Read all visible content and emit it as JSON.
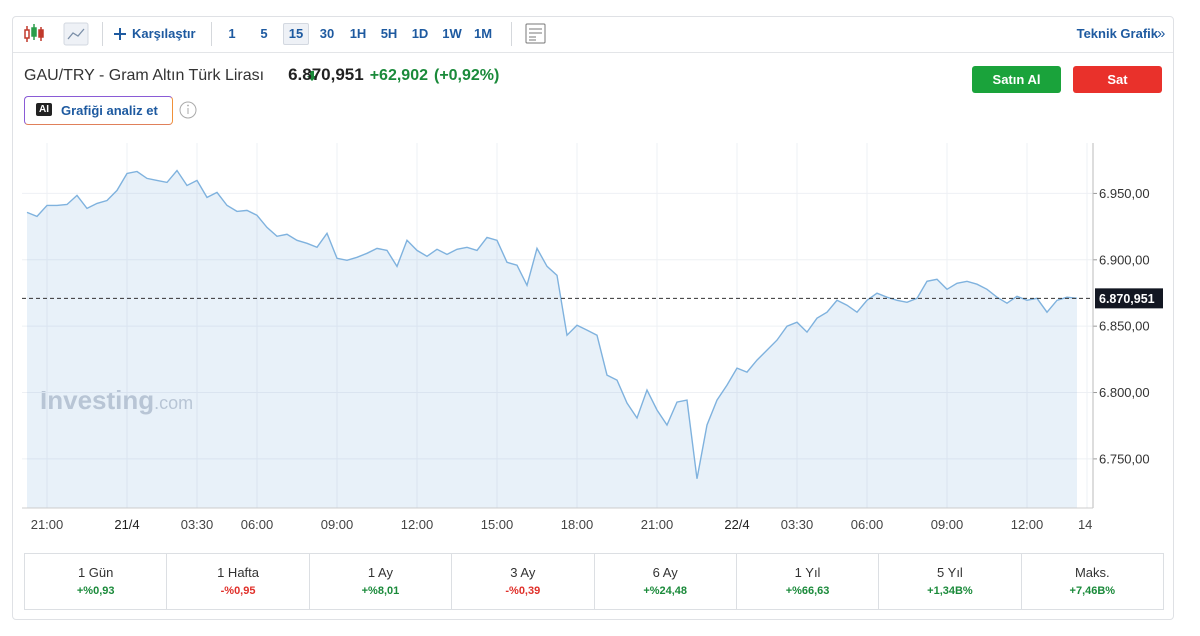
{
  "toolbar": {
    "compare": "Karşılaştır",
    "intervals": [
      "1",
      "5",
      "15",
      "30",
      "1H",
      "5H",
      "1D",
      "1W",
      "1M"
    ],
    "active_interval": "15",
    "technical": "Teknik Grafik",
    "more": "»"
  },
  "header": {
    "symbol_name": "GAU/TRY - Gram Altın Türk Lirası",
    "change": "+62,902",
    "change_pct": "(+0,92%)",
    "buy": "Satın Al",
    "sell": "Sat",
    "ai_badge": "AI",
    "analyze": "Grafiği analiz et"
  },
  "watermark": {
    "main": "Investing",
    "suffix": ".com"
  },
  "chart_data": {
    "type": "area",
    "color": "#7fb2de",
    "categories": [
      null,
      null,
      "21:00",
      null,
      null,
      null,
      null,
      null,
      null,
      null,
      "21/4",
      null,
      null,
      null,
      null,
      null,
      null,
      "03:30",
      null,
      null,
      null,
      null,
      null,
      "06:00",
      null,
      null,
      null,
      null,
      null,
      null,
      null,
      "09:00",
      null,
      null,
      null,
      null,
      null,
      null,
      null,
      "12:00",
      null,
      null,
      null,
      null,
      null,
      null,
      null,
      "15:00",
      null,
      null,
      null,
      null,
      null,
      null,
      null,
      "18:00",
      null,
      null,
      null,
      null,
      null,
      null,
      null,
      "21:00",
      null,
      null,
      null,
      null,
      null,
      null,
      null,
      "22/4",
      null,
      null,
      null,
      null,
      null,
      "03:30",
      null,
      null,
      null,
      null,
      null,
      null,
      "06:00",
      null,
      null,
      null,
      null,
      null,
      null,
      null,
      "09:00",
      null,
      null,
      null,
      null,
      null,
      null,
      null,
      "12:00",
      null,
      null,
      null,
      null,
      null,
      "14:"
    ],
    "values": [
      6935.7,
      6932.7,
      6941,
      6941,
      6941.7,
      6948.5,
      6938.7,
      6942.5,
      6944.7,
      6952.3,
      6965,
      6966.5,
      6961.3,
      6959.8,
      6958.3,
      6967.3,
      6956,
      6959.8,
      6947,
      6950.8,
      6941,
      6936.5,
      6937.2,
      6933.5,
      6924.4,
      6917.7,
      6919.2,
      6914.7,
      6912.4,
      6909.4,
      6920,
      6901.1,
      6899.6,
      6901.9,
      6904.9,
      6908.6,
      6907.1,
      6895,
      6914.7,
      6907.1,
      6902.6,
      6907.9,
      6904.1,
      6907.9,
      6909.4,
      6907.1,
      6916.9,
      6914.7,
      6898.1,
      6895.9,
      6880.8,
      6908.6,
      6895.1,
      6888.3,
      6843.2,
      6850.7,
      6847,
      6843.2,
      6813.1,
      6809.4,
      6792.1,
      6780.8,
      6801.9,
      6786.8,
      6775.5,
      6792.8,
      6794.3,
      6735,
      6775.5,
      6794.3,
      6805.6,
      6818.4,
      6815.4,
      6824.4,
      6832,
      6839.5,
      6850,
      6853,
      6845.5,
      6856,
      6860.5,
      6869.5,
      6865.8,
      6860.5,
      6869.5,
      6874.8,
      6871.8,
      6869.5,
      6868,
      6871,
      6883.8,
      6885.3,
      6877.8,
      6882.3,
      6883.8,
      6881.6,
      6877.8,
      6871.8,
      6867.3,
      6872.5,
      6869.5,
      6871,
      6860.5,
      6869.5,
      6871.8,
      6871,
      null
    ],
    "ylim": [
      6713,
      6988
    ],
    "yticks": [
      {
        "value": 6750,
        "label": "6.750,00"
      },
      {
        "value": 6800,
        "label": "6.800,00"
      },
      {
        "value": 6850,
        "label": "6.850,00"
      },
      {
        "value": 6900,
        "label": "6.900,00"
      },
      {
        "value": 6950,
        "label": "6.950,00"
      }
    ],
    "last_price": {
      "value": 6870.951,
      "label": "6.870,951"
    },
    "grid": true
  },
  "performance": [
    {
      "period": "1 Gün",
      "change": "+%0,93"
    },
    {
      "period": "1 Hafta",
      "change": "-%0,95"
    },
    {
      "period": "1 Ay",
      "change": "+%8,01"
    },
    {
      "period": "3 Ay",
      "change": "-%0,39"
    },
    {
      "period": "6 Ay",
      "change": "+%24,48"
    },
    {
      "period": "1 Yıl",
      "change": "+%66,63"
    },
    {
      "period": "5 Yıl",
      "change": "+1,34B%"
    },
    {
      "period": "Maks.",
      "change": "+7,46B%"
    }
  ]
}
